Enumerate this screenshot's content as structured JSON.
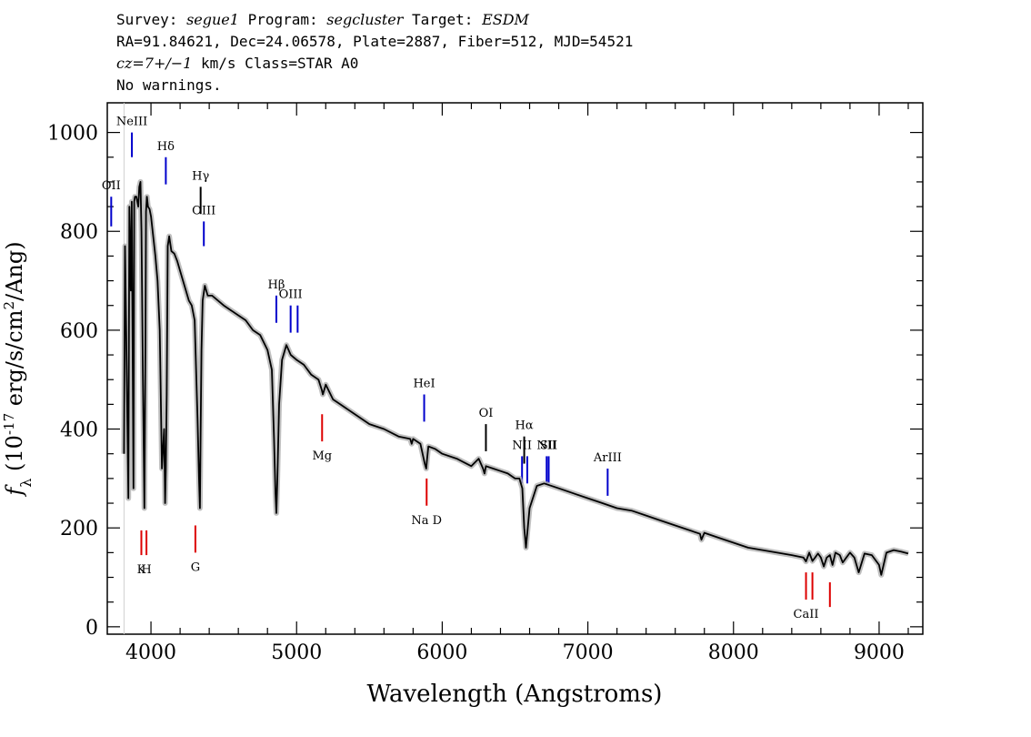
{
  "header": {
    "survey_label": "Survey:",
    "survey": "segue1",
    "program_label": "Program:",
    "program": "segcluster",
    "target_label": "Target:",
    "target": "ESDM",
    "line2": "RA=91.84621, Dec=24.06578, Plate=2887, Fiber=512, MJD=54521",
    "cz_label": "cz=7+/−1",
    "cz_rest": " km/s Class=STAR A0",
    "line4": "No warnings."
  },
  "chart_data": {
    "type": "line",
    "xlabel": "Wavelength (Angstroms)",
    "ylabel": "f_λ (10^-17 erg/s/cm^2/Ang)",
    "xlim": [
      3700,
      9300
    ],
    "ylim": [
      -15,
      1060
    ],
    "xticks": [
      4000,
      5000,
      6000,
      7000,
      8000,
      9000
    ],
    "yticks": [
      0,
      200,
      400,
      600,
      800,
      1000
    ],
    "x": [
      3815,
      3822,
      3832,
      3845,
      3852,
      3862,
      3868,
      3880,
      3885,
      3890,
      3900,
      3913,
      3920,
      3928,
      3935,
      3945,
      3955,
      3962,
      3966,
      3972,
      3980,
      3990,
      4000,
      4015,
      4030,
      4045,
      4060,
      4075,
      4090,
      4097,
      4102,
      4108,
      4115,
      4125,
      4140,
      4160,
      4180,
      4200,
      4220,
      4240,
      4260,
      4280,
      4300,
      4320,
      4330,
      4336,
      4341,
      4347,
      4355,
      4370,
      4390,
      4420,
      4460,
      4500,
      4550,
      4600,
      4650,
      4700,
      4750,
      4800,
      4830,
      4845,
      4855,
      4861,
      4868,
      4880,
      4900,
      4930,
      4960,
      5000,
      5050,
      5100,
      5150,
      5172,
      5180,
      5200,
      5250,
      5300,
      5400,
      5500,
      5600,
      5700,
      5780,
      5790,
      5800,
      5850,
      5880,
      5890,
      5896,
      5905,
      5950,
      6000,
      6100,
      6200,
      6250,
      6280,
      6290,
      6300,
      6350,
      6400,
      6450,
      6500,
      6530,
      6550,
      6563,
      6575,
      6600,
      6650,
      6700,
      6800,
      6900,
      7000,
      7100,
      7200,
      7300,
      7400,
      7500,
      7600,
      7700,
      7770,
      7780,
      7800,
      7900,
      8000,
      8100,
      8200,
      8300,
      8400,
      8480,
      8498,
      8520,
      8542,
      8560,
      8580,
      8600,
      8620,
      8640,
      8662,
      8680,
      8700,
      8730,
      8750,
      8800,
      8830,
      8860,
      8900,
      8950,
      9000,
      9015,
      9050,
      9100,
      9150,
      9200
    ],
    "y": [
      350,
      770,
      560,
      260,
      850,
      680,
      860,
      280,
      860,
      870,
      870,
      850,
      890,
      900,
      800,
      500,
      240,
      580,
      840,
      870,
      850,
      845,
      830,
      790,
      750,
      700,
      600,
      320,
      400,
      250,
      320,
      470,
      770,
      790,
      760,
      755,
      740,
      720,
      700,
      680,
      660,
      650,
      620,
      420,
      300,
      240,
      400,
      560,
      660,
      690,
      670,
      670,
      660,
      650,
      640,
      630,
      620,
      600,
      590,
      560,
      520,
      380,
      270,
      230,
      300,
      450,
      540,
      570,
      550,
      540,
      530,
      510,
      500,
      480,
      470,
      490,
      460,
      450,
      430,
      410,
      400,
      385,
      380,
      370,
      380,
      370,
      330,
      320,
      340,
      365,
      360,
      350,
      340,
      325,
      340,
      320,
      310,
      325,
      320,
      315,
      310,
      300,
      300,
      280,
      200,
      160,
      240,
      285,
      290,
      280,
      270,
      260,
      250,
      240,
      235,
      225,
      215,
      205,
      195,
      188,
      176,
      190,
      180,
      170,
      160,
      155,
      150,
      145,
      140,
      132,
      150,
      133,
      140,
      148,
      140,
      122,
      140,
      145,
      125,
      150,
      145,
      130,
      150,
      140,
      110,
      148,
      145,
      125,
      105,
      150,
      155,
      152,
      148
    ]
  },
  "lines": {
    "blue": [
      {
        "wl": 3727,
        "top": 870,
        "bot": 810,
        "label": "OII"
      },
      {
        "wl": 3869,
        "top": 1000,
        "bot": 950,
        "label": "NeIII"
      },
      {
        "wl": 4102,
        "top": 950,
        "bot": 895,
        "label": "Hδ"
      },
      {
        "wl": 4363,
        "top": 820,
        "bot": 770,
        "label": "OIII"
      },
      {
        "wl": 4861,
        "top": 670,
        "bot": 615,
        "label": "Hβ"
      },
      {
        "wl": 4959,
        "top": 650,
        "bot": 595,
        "label": "OIII"
      },
      {
        "wl": 5007,
        "top": 650,
        "bot": 595,
        "label": ""
      },
      {
        "wl": 5876,
        "top": 470,
        "bot": 415,
        "label": "HeI"
      },
      {
        "wl": 6548,
        "top": 345,
        "bot": 290,
        "label": "NII"
      },
      {
        "wl": 6584,
        "top": 345,
        "bot": 290,
        "label": ""
      },
      {
        "wl": 6717,
        "top": 345,
        "bot": 290,
        "label": "NII"
      },
      {
        "wl": 6731,
        "top": 345,
        "bot": 290,
        "label": "SII"
      },
      {
        "wl": 7136,
        "top": 320,
        "bot": 265,
        "label": "ArIII"
      }
    ],
    "black": [
      {
        "wl": 4341,
        "top": 890,
        "bot": 835,
        "label": "Hγ"
      },
      {
        "wl": 6300,
        "top": 410,
        "bot": 355,
        "label": "OI"
      },
      {
        "wl": 6563,
        "top": 385,
        "bot": 330,
        "label": "Hα"
      }
    ],
    "red": [
      {
        "wl": 3934,
        "top": 195,
        "bot": 145,
        "label": "K"
      },
      {
        "wl": 3969,
        "top": 195,
        "bot": 145,
        "label": "H"
      },
      {
        "wl": 4305,
        "top": 205,
        "bot": 150,
        "label": "G"
      },
      {
        "wl": 5175,
        "top": 430,
        "bot": 375,
        "label": "Mg"
      },
      {
        "wl": 5893,
        "top": 300,
        "bot": 245,
        "label": "Na D"
      },
      {
        "wl": 8498,
        "top": 110,
        "bot": 55,
        "label": "CaII"
      },
      {
        "wl": 8542,
        "top": 110,
        "bot": 55,
        "label": ""
      },
      {
        "wl": 8662,
        "top": 90,
        "bot": 40,
        "label": ""
      }
    ]
  },
  "colors": {
    "blue": "#0000cc",
    "red": "#dd0000",
    "black": "#000000",
    "error": "#b0b0b0"
  }
}
